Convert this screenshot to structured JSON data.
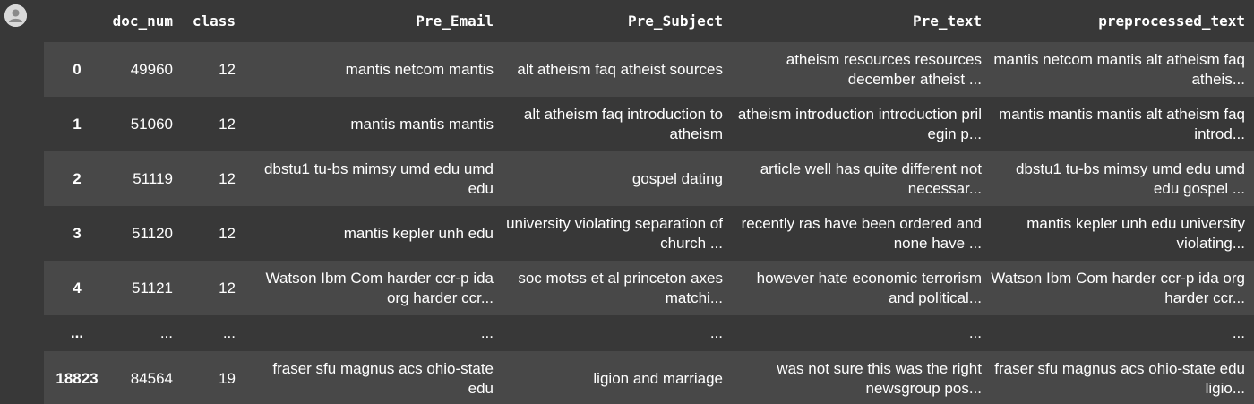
{
  "columns": [
    "",
    "doc_num",
    "class",
    "Pre_Email",
    "Pre_Subject",
    "Pre_text",
    "preprocessed_text"
  ],
  "rows": [
    {
      "index": "0",
      "doc_num": "49960",
      "class": "12",
      "pre_email": "mantis netcom mantis",
      "pre_subject": "alt atheism faq atheist sources",
      "pre_text": "atheism resources resources december atheist ...",
      "preprocessed_text": "mantis netcom mantis alt atheism faq atheis..."
    },
    {
      "index": "1",
      "doc_num": "51060",
      "class": "12",
      "pre_email": "mantis mantis mantis",
      "pre_subject": "alt atheism faq introduction to atheism",
      "pre_text": "atheism introduction introduction pril egin p...",
      "preprocessed_text": "mantis mantis mantis alt atheism faq introd..."
    },
    {
      "index": "2",
      "doc_num": "51119",
      "class": "12",
      "pre_email": "dbstu1 tu-bs mimsy umd edu umd edu",
      "pre_subject": "gospel dating",
      "pre_text": "article well has quite different not necessar...",
      "preprocessed_text": "dbstu1 tu-bs mimsy umd edu umd edu gospel ..."
    },
    {
      "index": "3",
      "doc_num": "51120",
      "class": "12",
      "pre_email": "mantis kepler unh edu",
      "pre_subject": "university violating separation of church ...",
      "pre_text": "recently ras have been ordered and none have ...",
      "preprocessed_text": "mantis kepler unh edu university violating..."
    },
    {
      "index": "4",
      "doc_num": "51121",
      "class": "12",
      "pre_email": "Watson Ibm Com harder ccr-p ida org harder ccr...",
      "pre_subject": "soc motss et al princeton axes matchi...",
      "pre_text": "however hate economic terrorism and political...",
      "preprocessed_text": "Watson Ibm Com harder ccr-p ida org harder ccr..."
    },
    {
      "index": "...",
      "doc_num": "...",
      "class": "...",
      "pre_email": "...",
      "pre_subject": "...",
      "pre_text": "...",
      "preprocessed_text": "..."
    },
    {
      "index": "18823",
      "doc_num": "84564",
      "class": "19",
      "pre_email": "fraser sfu magnus acs ohio-state edu",
      "pre_subject": "ligion and marriage",
      "pre_text": "was not sure this was the right newsgroup pos...",
      "preprocessed_text": "fraser sfu magnus acs ohio-state edu ligio..."
    }
  ],
  "avatar_icon": "user-avatar-icon"
}
